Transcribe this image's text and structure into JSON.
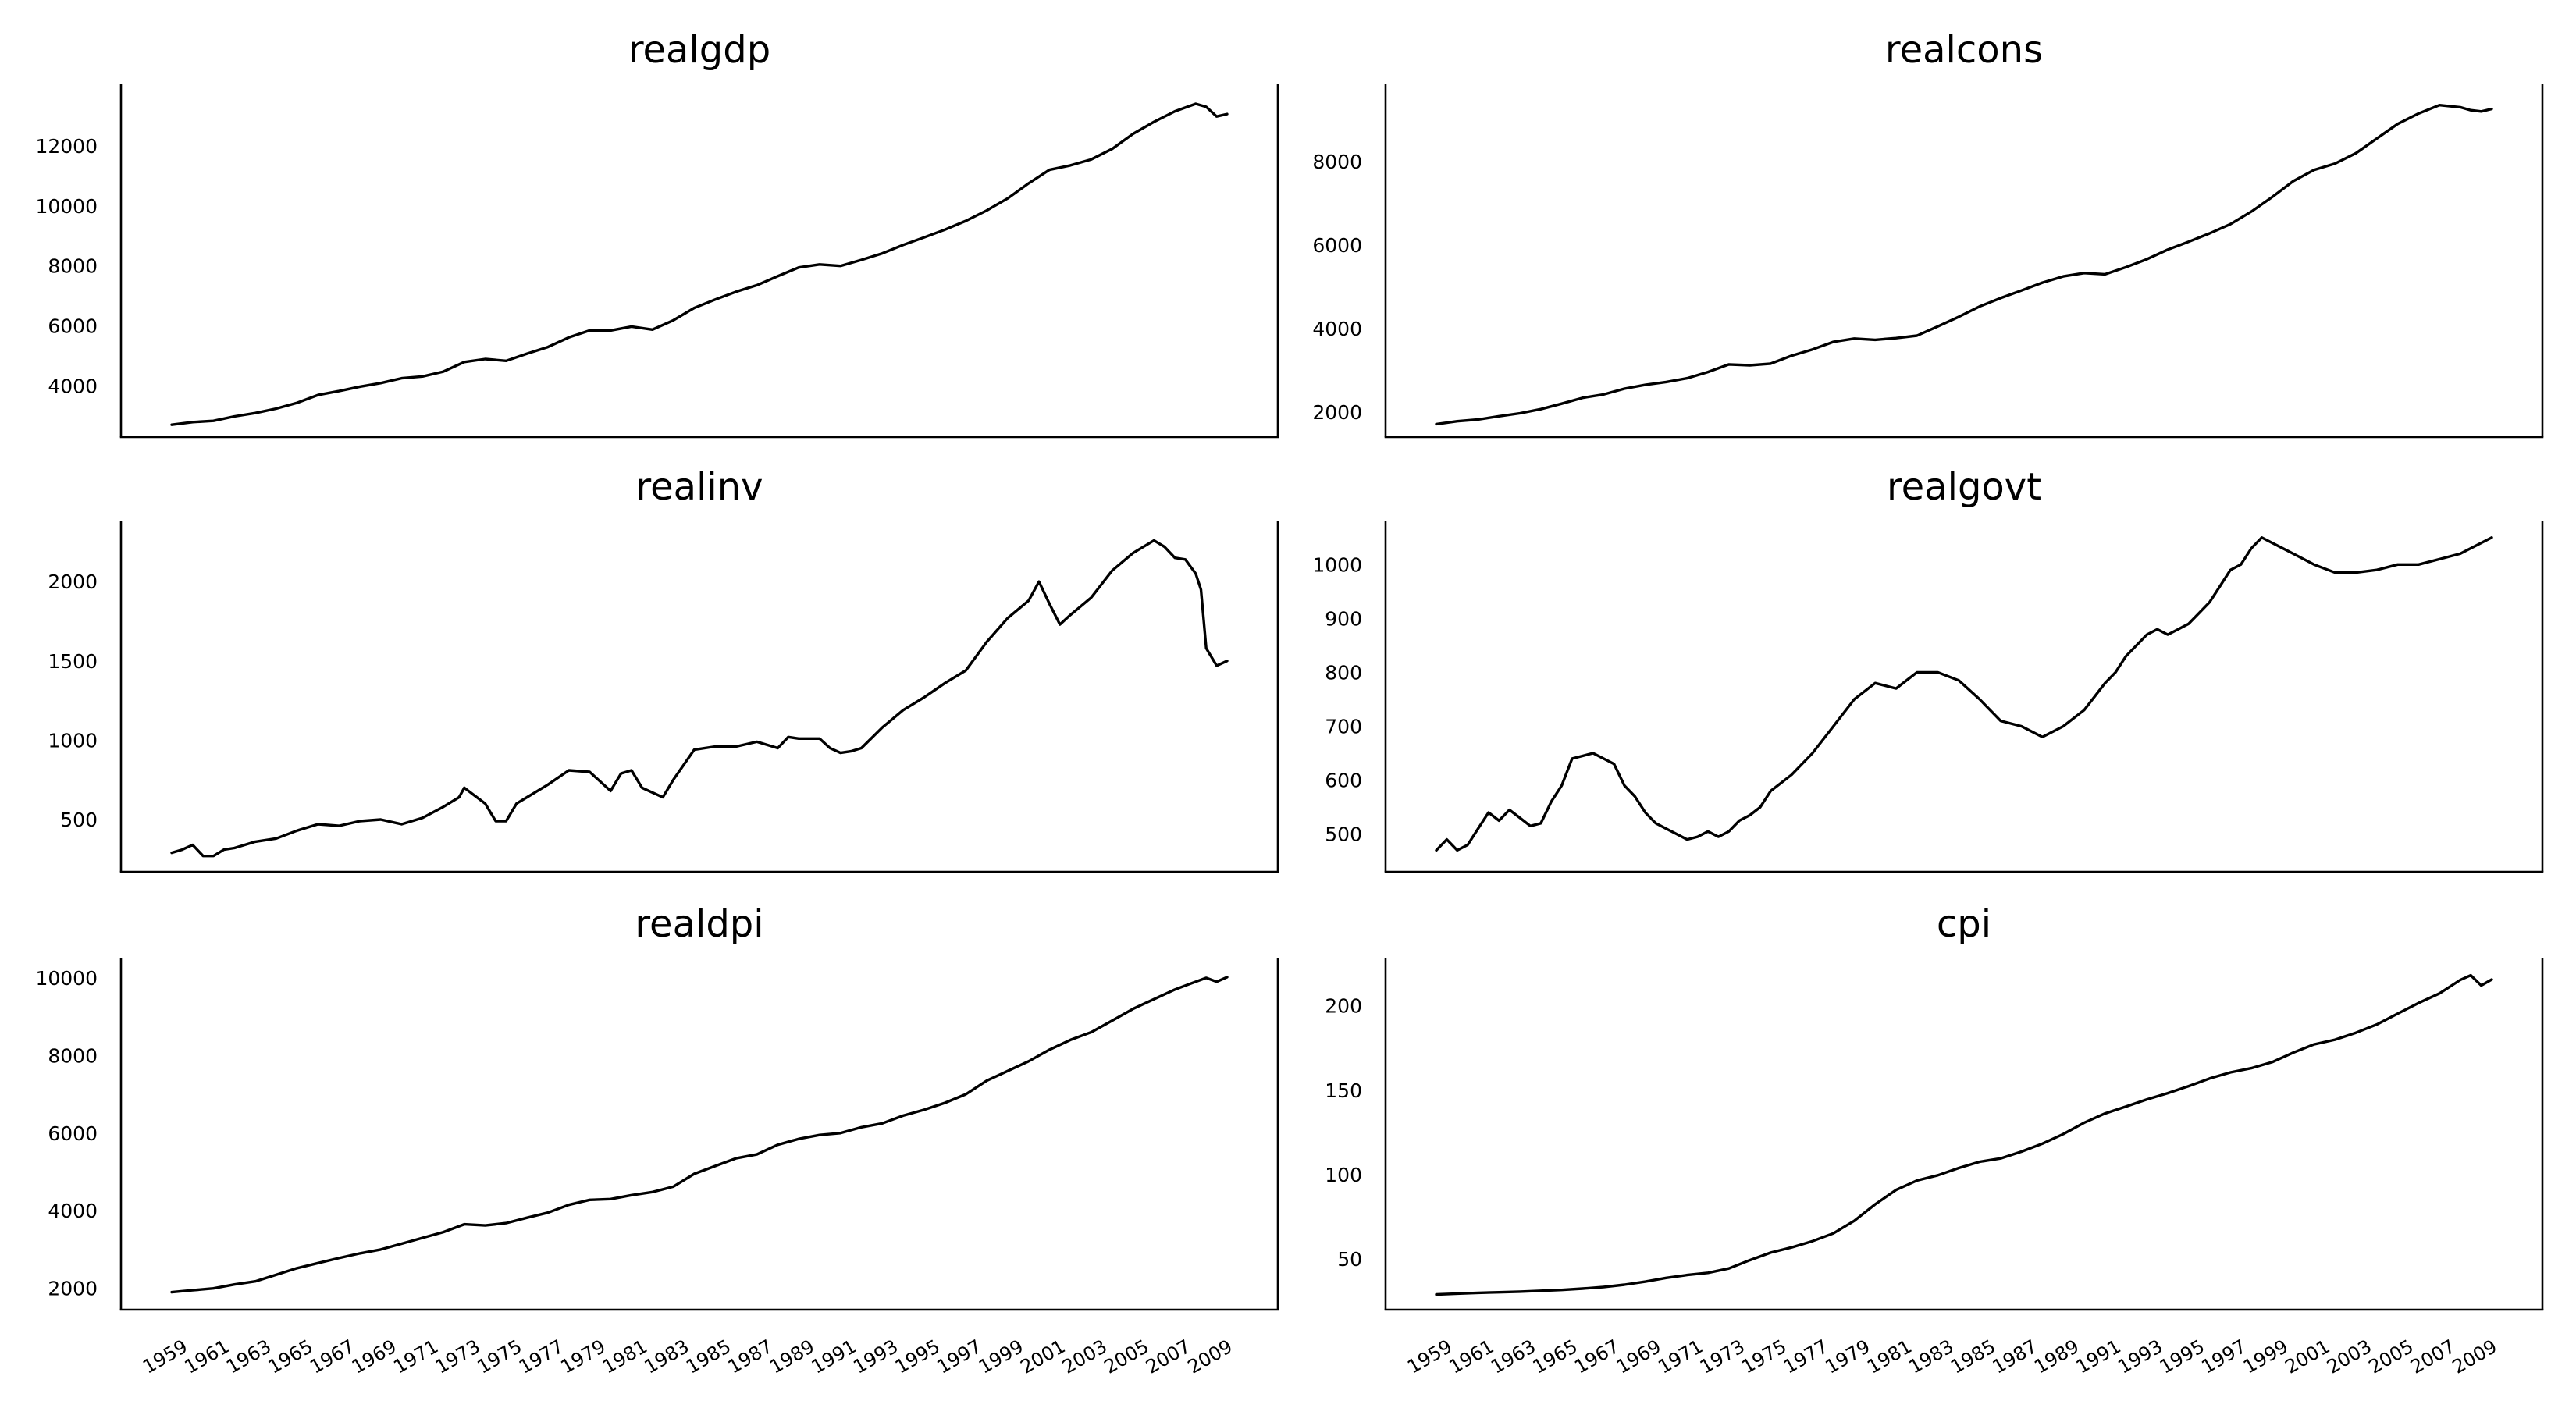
{
  "figure": {
    "background": "#ffffff",
    "line_color": "#000000"
  },
  "x_tick_labels": [
    "1959",
    "1961",
    "1963",
    "1965",
    "1967",
    "1969",
    "1971",
    "1973",
    "1975",
    "1977",
    "1979",
    "1981",
    "1983",
    "1985",
    "1987",
    "1989",
    "1991",
    "1993",
    "1995",
    "1997",
    "1999",
    "2001",
    "2003",
    "2005",
    "2007",
    "2009"
  ],
  "chart_data": [
    {
      "type": "line",
      "title": "realgdp",
      "x_range": [
        1959,
        2009.5
      ],
      "ylim": [
        2300,
        14050
      ],
      "yticks": [
        4000,
        6000,
        8000,
        10000,
        12000
      ],
      "grid": false,
      "x": [
        1959,
        1960,
        1961,
        1962,
        1963,
        1964,
        1965,
        1966,
        1967,
        1968,
        1969,
        1970,
        1971,
        1972,
        1973,
        1974,
        1975,
        1976,
        1977,
        1978,
        1979,
        1980,
        1981,
        1982,
        1983,
        1984,
        1985,
        1986,
        1987,
        1988,
        1989,
        1990,
        1991,
        1992,
        1993,
        1994,
        1995,
        1996,
        1997,
        1998,
        1999,
        2000,
        2001,
        2002,
        2003,
        2004,
        2005,
        2006,
        2007,
        2008,
        2008.5,
        2009,
        2009.5
      ],
      "y": [
        2710,
        2800,
        2840,
        2990,
        3100,
        3250,
        3440,
        3700,
        3830,
        3980,
        4100,
        4260,
        4320,
        4480,
        4800,
        4900,
        4840,
        5080,
        5300,
        5620,
        5850,
        5850,
        5980,
        5880,
        6190,
        6600,
        6880,
        7140,
        7360,
        7660,
        7950,
        8050,
        8000,
        8200,
        8420,
        8700,
        8950,
        9210,
        9500,
        9850,
        10250,
        10750,
        11200,
        11350,
        11550,
        11900,
        12400,
        12800,
        13150,
        13400,
        13300,
        12980,
        13060
      ]
    },
    {
      "type": "line",
      "title": "realcons",
      "x_range": [
        1959,
        2009.5
      ],
      "ylim": [
        1400,
        9850
      ],
      "yticks": [
        2000,
        4000,
        6000,
        8000
      ],
      "grid": false,
      "x": [
        1959,
        1960,
        1961,
        1962,
        1963,
        1964,
        1965,
        1966,
        1967,
        1968,
        1969,
        1970,
        1971,
        1972,
        1973,
        1974,
        1975,
        1976,
        1977,
        1978,
        1979,
        1980,
        1981,
        1982,
        1983,
        1984,
        1985,
        1986,
        1987,
        1988,
        1989,
        1990,
        1991,
        1992,
        1993,
        1994,
        1995,
        1996,
        1997,
        1998,
        1999,
        2000,
        2001,
        2002,
        2003,
        2004,
        2005,
        2006,
        2007,
        2008,
        2008.5,
        2009,
        2009.5
      ],
      "y": [
        1710,
        1780,
        1820,
        1900,
        1970,
        2070,
        2200,
        2340,
        2420,
        2560,
        2650,
        2720,
        2810,
        2960,
        3140,
        3120,
        3160,
        3350,
        3500,
        3680,
        3760,
        3730,
        3770,
        3830,
        4050,
        4280,
        4530,
        4730,
        4910,
        5100,
        5250,
        5330,
        5300,
        5470,
        5660,
        5890,
        6080,
        6280,
        6500,
        6800,
        7150,
        7530,
        7800,
        7950,
        8200,
        8550,
        8900,
        9150,
        9350,
        9300,
        9230,
        9200,
        9260
      ]
    },
    {
      "type": "line",
      "title": "realinv",
      "x_range": [
        1959,
        2009.5
      ],
      "ylim": [
        170,
        2380
      ],
      "yticks": [
        500,
        1000,
        1500,
        2000
      ],
      "grid": false,
      "x": [
        1959,
        1959.5,
        1960,
        1960.5,
        1961,
        1961.5,
        1962,
        1963,
        1964,
        1965,
        1966,
        1967,
        1968,
        1969,
        1970,
        1971,
        1972,
        1972.75,
        1973,
        1973.5,
        1974,
        1974.5,
        1975,
        1975.5,
        1976,
        1977,
        1978,
        1979,
        1980,
        1980.5,
        1981,
        1981.5,
        1982,
        1982.5,
        1983,
        1984,
        1985,
        1986,
        1987,
        1988,
        1988.5,
        1989,
        1990,
        1990.5,
        1991,
        1991.5,
        1992,
        1993,
        1994,
        1995,
        1996,
        1997,
        1998,
        1999,
        2000,
        2000.5,
        2001,
        2001.5,
        2002,
        2003,
        2004,
        2005,
        2006,
        2006.5,
        2007,
        2007.5,
        2008,
        2008.25,
        2008.5,
        2009,
        2009.5
      ],
      "y": [
        290,
        310,
        340,
        270,
        270,
        310,
        320,
        360,
        380,
        430,
        470,
        460,
        490,
        500,
        470,
        510,
        580,
        640,
        700,
        650,
        600,
        490,
        490,
        600,
        640,
        720,
        810,
        800,
        680,
        790,
        810,
        700,
        670,
        640,
        750,
        940,
        960,
        960,
        990,
        950,
        1020,
        1010,
        1010,
        950,
        920,
        930,
        950,
        1080,
        1190,
        1270,
        1360,
        1440,
        1620,
        1770,
        1880,
        2000,
        1860,
        1730,
        1790,
        1900,
        2070,
        2180,
        2260,
        2220,
        2150,
        2140,
        2050,
        1950,
        1580,
        1470,
        1500
      ]
    },
    {
      "type": "line",
      "title": "realgovt",
      "x_range": [
        1959,
        2009.5
      ],
      "ylim": [
        430,
        1080
      ],
      "yticks": [
        500,
        600,
        700,
        800,
        900,
        1000
      ],
      "grid": false,
      "x": [
        1959,
        1959.5,
        1960,
        1960.5,
        1961,
        1961.5,
        1962,
        1962.5,
        1963,
        1963.5,
        1964,
        1964.5,
        1965,
        1965.5,
        1966,
        1966.5,
        1967,
        1967.5,
        1968,
        1968.5,
        1969,
        1969.5,
        1970,
        1970.5,
        1971,
        1971.5,
        1972,
        1972.5,
        1973,
        1973.5,
        1974,
        1974.5,
        1975,
        1976,
        1977,
        1978,
        1979,
        1980,
        1981,
        1982,
        1983,
        1984,
        1985,
        1986,
        1987,
        1987.5,
        1988,
        1988.5,
        1989,
        1990,
        1991,
        1991.5,
        1992,
        1992.5,
        1993,
        1993.5,
        1994,
        1994.5,
        1995,
        1995.5,
        1996,
        1996.5,
        1997,
        1997.5,
        1998,
        1998.5,
        1999,
        2000,
        2001,
        2002,
        2003,
        2004,
        2005,
        2006,
        2007,
        2008,
        2008.5,
        2009,
        2009.5
      ],
      "y": [
        470,
        490,
        470,
        480,
        510,
        540,
        525,
        545,
        530,
        515,
        520,
        560,
        590,
        640,
        645,
        650,
        640,
        630,
        590,
        570,
        540,
        520,
        510,
        500,
        490,
        495,
        505,
        495,
        505,
        525,
        535,
        550,
        580,
        610,
        650,
        700,
        750,
        780,
        770,
        800,
        800,
        785,
        750,
        710,
        700,
        690,
        680,
        690,
        700,
        730,
        780,
        800,
        830,
        850,
        870,
        880,
        870,
        880,
        890,
        910,
        930,
        960,
        990,
        1000,
        1030,
        1050,
        1040,
        1020,
        1000,
        985,
        985,
        990,
        1000,
        1000,
        1010,
        1020,
        1030,
        1040,
        1050
      ]
    },
    {
      "type": "line",
      "title": "realdpi",
      "x_range": [
        1959,
        2009.5
      ],
      "ylim": [
        1450,
        10500
      ],
      "yticks": [
        2000,
        4000,
        6000,
        8000,
        10000
      ],
      "grid": false,
      "x": [
        1959,
        1960,
        1961,
        1962,
        1963,
        1964,
        1965,
        1966,
        1967,
        1968,
        1969,
        1970,
        1971,
        1972,
        1973,
        1974,
        1975,
        1976,
        1977,
        1978,
        1979,
        1980,
        1981,
        1982,
        1983,
        1984,
        1985,
        1986,
        1987,
        1988,
        1989,
        1990,
        1991,
        1992,
        1993,
        1994,
        1995,
        1996,
        1997,
        1998,
        1999,
        2000,
        2001,
        2002,
        2003,
        2004,
        2005,
        2006,
        2007,
        2008,
        2008.5,
        2009,
        2009.5
      ],
      "y": [
        1900,
        1950,
        2000,
        2100,
        2180,
        2350,
        2520,
        2650,
        2780,
        2900,
        3000,
        3150,
        3300,
        3450,
        3650,
        3620,
        3680,
        3820,
        3950,
        4150,
        4280,
        4300,
        4400,
        4480,
        4620,
        4950,
        5150,
        5350,
        5450,
        5700,
        5850,
        5950,
        6000,
        6150,
        6250,
        6450,
        6600,
        6780,
        7000,
        7350,
        7600,
        7850,
        8150,
        8400,
        8600,
        8900,
        9200,
        9450,
        9700,
        9900,
        10000,
        9900,
        10020
      ]
    },
    {
      "type": "line",
      "title": "cpi",
      "x_range": [
        1959,
        2009.5
      ],
      "ylim": [
        20,
        228
      ],
      "yticks": [
        50,
        100,
        150,
        200
      ],
      "grid": false,
      "x": [
        1959,
        1960,
        1961,
        1962,
        1963,
        1964,
        1965,
        1966,
        1967,
        1968,
        1969,
        1970,
        1971,
        1972,
        1973,
        1974,
        1975,
        1976,
        1977,
        1978,
        1979,
        1980,
        1981,
        1982,
        1983,
        1984,
        1985,
        1986,
        1987,
        1988,
        1989,
        1990,
        1991,
        1992,
        1993,
        1994,
        1995,
        1996,
        1997,
        1998,
        1999,
        2000,
        2001,
        2002,
        2003,
        2004,
        2005,
        2006,
        2007,
        2008,
        2008.5,
        2009,
        2009.5
      ],
      "y": [
        29.0,
        29.5,
        30.0,
        30.3,
        30.7,
        31.2,
        31.7,
        32.5,
        33.4,
        34.8,
        36.6,
        38.8,
        40.5,
        41.8,
        44.4,
        49.3,
        53.8,
        56.9,
        60.6,
        65.2,
        72.6,
        82.4,
        90.9,
        96.5,
        99.6,
        103.9,
        107.6,
        109.6,
        113.6,
        118.3,
        124.0,
        130.7,
        136.2,
        140.3,
        144.5,
        148.2,
        152.4,
        156.9,
        160.5,
        163.0,
        166.6,
        172.2,
        177.1,
        179.9,
        184.0,
        188.9,
        195.3,
        201.6,
        207.3,
        215.3,
        218.0,
        212.0,
        215.5
      ]
    }
  ]
}
